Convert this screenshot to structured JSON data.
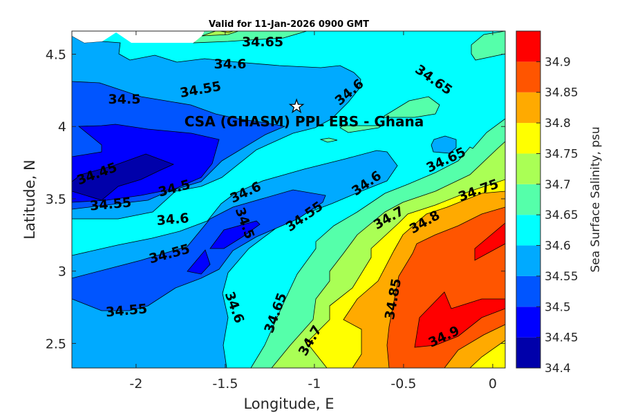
{
  "chart_data": {
    "type": "contour",
    "title": "Valid for 11-Jan-2026 0900 GMT",
    "annotation": "CSA (GHASM) PPL EBS  - Ghana",
    "xlabel": "Longitude, E",
    "ylabel": "Latitude, N",
    "xlim": [
      -2.36,
      0.07
    ],
    "ylim": [
      2.33,
      4.66
    ],
    "xticks": [
      -2,
      -1.5,
      -1,
      -0.5,
      0
    ],
    "xtick_labels": [
      "-2",
      "-1.5",
      "-1",
      "-0.5",
      "0"
    ],
    "yticks": [
      2.5,
      3,
      3.5,
      4,
      4.5
    ],
    "ytick_labels": [
      "2.5",
      "3",
      "3.5",
      "4",
      "4.5"
    ],
    "marker": {
      "symbol": "star",
      "lon": -1.1,
      "lat": 4.1
    },
    "colorbar": {
      "label": "Sea Surface Salinity, psu",
      "range": [
        34.4,
        34.95
      ],
      "ticks": [
        34.4,
        34.45,
        34.5,
        34.55,
        34.6,
        34.65,
        34.7,
        34.75,
        34.8,
        34.85,
        34.9
      ],
      "tick_labels": [
        "34.4",
        "34.45",
        "34.5",
        "34.55",
        "34.6",
        "34.65",
        "34.7",
        "34.75",
        "34.8",
        "34.85",
        "34.9"
      ],
      "colors": [
        "#0000AA",
        "#0000FF",
        "#0055FF",
        "#00AAFF",
        "#00FFFF",
        "#55FFAA",
        "#AAFF55",
        "#FFFF00",
        "#FFAA00",
        "#FF5500",
        "#FF0000"
      ]
    },
    "contour_labels": [
      "34.65",
      "34.6",
      "34.5",
      "34.55",
      "34.6",
      "34.65",
      "34.45",
      "34.5",
      "34.55",
      "34.6",
      "34.6",
      "34.5",
      "34.55",
      "34.55",
      "34.55",
      "34.6",
      "34.65",
      "34.7",
      "34.6",
      "34.65",
      "34.7",
      "34.75",
      "34.8",
      "34.85",
      "34.9"
    ]
  }
}
